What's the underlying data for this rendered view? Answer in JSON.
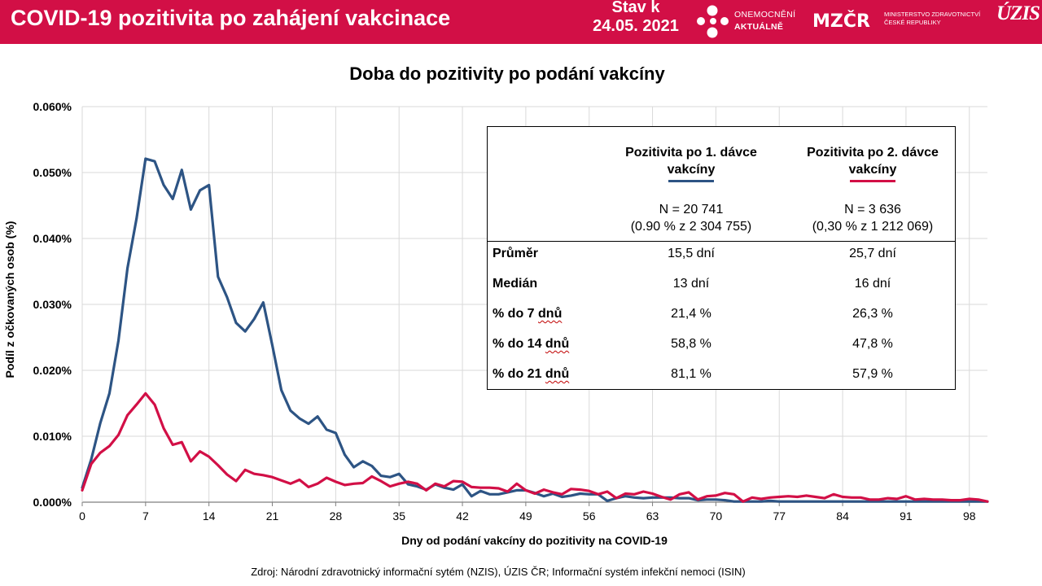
{
  "header": {
    "title": "COVID-19 pozitivita po zahájení vakcinace",
    "stav_label": "Stav k",
    "stav_date": "24.05. 2021",
    "logo_oa_line1": "ONEMOCNĚNÍ",
    "logo_oa_line2": "AKTUÁLNĚ",
    "logo_mz_line1": "MINISTERSTVO ZDRAVOTNICTVÍ",
    "logo_mz_line2": "ČESKÉ REPUBLIKY",
    "logo_mz_mark": "MZČR",
    "logo_uzis": "ÚZIS",
    "brand_color": "#d20f46"
  },
  "chart_data": {
    "type": "line",
    "title": "Doba do pozitivity po podání vakcíny",
    "xlabel": "Dny od podání vakcíny do pozitivity na COVID-19",
    "ylabel": "Podíl z očkovaných osob (%)",
    "xlim": [
      0,
      100
    ],
    "ylim": [
      0,
      0.06
    ],
    "xticks": [
      0,
      7,
      14,
      21,
      28,
      35,
      42,
      49,
      56,
      63,
      70,
      77,
      84,
      91,
      98
    ],
    "yticks": [
      "0.000%",
      "0.010%",
      "0.020%",
      "0.030%",
      "0.040%",
      "0.050%",
      "0.060%"
    ],
    "grid": true,
    "series": [
      {
        "name": "Pozitivita po 1. dávce vakcíny",
        "color": "#2d5484",
        "x": [
          0,
          1,
          2,
          3,
          4,
          5,
          6,
          7,
          8,
          9,
          10,
          11,
          12,
          13,
          14,
          15,
          16,
          17,
          18,
          19,
          20,
          21,
          22,
          23,
          24,
          25,
          26,
          27,
          28,
          29,
          30,
          31,
          32,
          33,
          34,
          35,
          36,
          37,
          38,
          39,
          40,
          41,
          42,
          43,
          44,
          45,
          46,
          47,
          48,
          49,
          50,
          51,
          52,
          53,
          54,
          55,
          56,
          57,
          58,
          59,
          60,
          61,
          62,
          63,
          64,
          65,
          66,
          67,
          68,
          69,
          70,
          71,
          72,
          73,
          74,
          75,
          76,
          77,
          78,
          79,
          80,
          81,
          82,
          83,
          84,
          85,
          86,
          87,
          88,
          89,
          90,
          91,
          92,
          93,
          94,
          95,
          96,
          97,
          98,
          99,
          100
        ],
        "values": [
          0.0022,
          0.0065,
          0.012,
          0.0165,
          0.0245,
          0.0355,
          0.043,
          0.0521,
          0.0517,
          0.0481,
          0.046,
          0.0504,
          0.0444,
          0.0473,
          0.0481,
          0.0342,
          0.0311,
          0.0272,
          0.0259,
          0.0278,
          0.0303,
          0.0238,
          0.017,
          0.0139,
          0.0127,
          0.0119,
          0.013,
          0.011,
          0.0105,
          0.0072,
          0.0053,
          0.0062,
          0.0055,
          0.004,
          0.0038,
          0.0043,
          0.0027,
          0.0024,
          0.0019,
          0.0027,
          0.0022,
          0.0019,
          0.0027,
          0.0009,
          0.0017,
          0.0012,
          0.0012,
          0.0015,
          0.0018,
          0.0018,
          0.0014,
          0.0009,
          0.0013,
          0.0008,
          0.001,
          0.0013,
          0.0012,
          0.0012,
          0.0002,
          0.0006,
          0.0009,
          0.0007,
          0.0006,
          0.0007,
          0.0007,
          0.0007,
          0.0006,
          0.0006,
          0.0003,
          0.0004,
          0.0004,
          0.0003,
          0.0001,
          0.0001,
          0.0001,
          0.0001,
          0.0002,
          0.0001,
          0.0001,
          0.0001,
          0.0001,
          0.0001,
          0.0001,
          0.0001,
          0.0001,
          0.0001,
          0.0001,
          0.0001,
          0.0001,
          0.0001,
          0.0001,
          0.0001,
          0.0001,
          0.0001,
          0.0001,
          0.0001,
          0.0001,
          0.0001,
          0.0001,
          0.0001,
          0.0001
        ]
      },
      {
        "name": "Pozitivita po 2. dávce vakcíny",
        "color": "#d20f46",
        "x": [
          0,
          1,
          2,
          3,
          4,
          5,
          6,
          7,
          8,
          9,
          10,
          11,
          12,
          13,
          14,
          15,
          16,
          17,
          18,
          19,
          20,
          21,
          22,
          23,
          24,
          25,
          26,
          27,
          28,
          29,
          30,
          31,
          32,
          33,
          34,
          35,
          36,
          37,
          38,
          39,
          40,
          41,
          42,
          43,
          44,
          45,
          46,
          47,
          48,
          49,
          50,
          51,
          52,
          53,
          54,
          55,
          56,
          57,
          58,
          59,
          60,
          61,
          62,
          63,
          64,
          65,
          66,
          67,
          68,
          69,
          70,
          71,
          72,
          73,
          74,
          75,
          76,
          77,
          78,
          79,
          80,
          81,
          82,
          83,
          84,
          85,
          86,
          87,
          88,
          89,
          90,
          91,
          92,
          93,
          94,
          95,
          96,
          97,
          98,
          99,
          100
        ],
        "values": [
          0.0018,
          0.0058,
          0.0075,
          0.0085,
          0.0102,
          0.0132,
          0.0148,
          0.0165,
          0.0148,
          0.0112,
          0.0087,
          0.0091,
          0.0062,
          0.0077,
          0.0069,
          0.0056,
          0.0042,
          0.0032,
          0.0049,
          0.0043,
          0.0041,
          0.0038,
          0.0033,
          0.0028,
          0.0034,
          0.0023,
          0.0028,
          0.0037,
          0.0031,
          0.0026,
          0.0028,
          0.0029,
          0.0039,
          0.0032,
          0.0024,
          0.0028,
          0.0031,
          0.0028,
          0.0018,
          0.0028,
          0.0024,
          0.0032,
          0.0031,
          0.0023,
          0.0022,
          0.0022,
          0.0021,
          0.0016,
          0.0028,
          0.0018,
          0.0013,
          0.0019,
          0.0015,
          0.0012,
          0.002,
          0.0019,
          0.0017,
          0.0012,
          0.0016,
          0.0006,
          0.0013,
          0.0012,
          0.0016,
          0.0013,
          0.0008,
          0.0004,
          0.0012,
          0.0015,
          0.0004,
          0.0009,
          0.001,
          0.0014,
          0.0012,
          0.0001,
          0.0007,
          0.0005,
          0.0007,
          0.0008,
          0.0009,
          0.0008,
          0.001,
          0.0008,
          0.0006,
          0.0012,
          0.0008,
          0.0007,
          0.0007,
          0.0004,
          0.0004,
          0.0006,
          0.0005,
          0.0009,
          0.0004,
          0.0005,
          0.0004,
          0.0004,
          0.0003,
          0.0003,
          0.0005,
          0.0004,
          0.0001
        ]
      }
    ]
  },
  "stats": {
    "col1_header": "Pozitivita po 1. dávce vakcíny",
    "col2_header": "Pozitivita po 2. dávce vakcíny",
    "col1_n": "N = 20 741",
    "col1_share": "(0.90 % z 2 304 755)",
    "col2_n": "N = 3 636",
    "col2_share": "(0,30 % z 1 212 069)",
    "rows": [
      {
        "label": "Průměr",
        "v1": "15,5 dní",
        "v2": "25,7 dní"
      },
      {
        "label": "Medián",
        "v1": "13 dní",
        "v2": "16 dní"
      },
      {
        "label_a": "% do 7 ",
        "label_b": "dnů",
        "v1": "21,4 %",
        "v2": "26,3 %"
      },
      {
        "label_a": "% do 14 ",
        "label_b": "dnů",
        "v1": "58,8 %",
        "v2": "47,8 %"
      },
      {
        "label_a": "% do 21 ",
        "label_b": "dnů",
        "v1": "81,1 %",
        "v2": "57,9 %"
      }
    ]
  },
  "source": "Zdroj: Národní zdravotnický informační sytém (NZIS), ÚZIS ČR; Informační systém infekční nemoci (ISIN)"
}
